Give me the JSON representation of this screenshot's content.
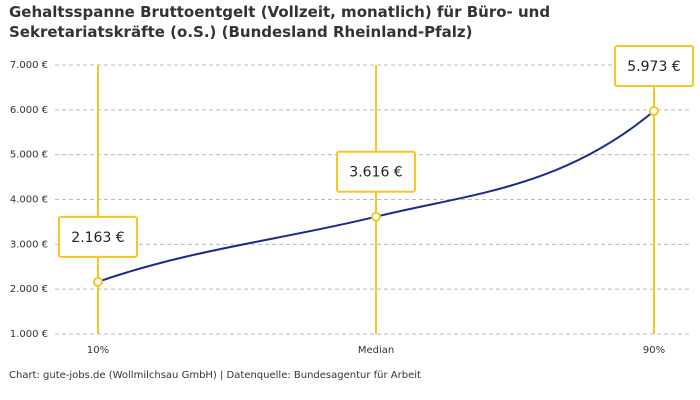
{
  "chart_data": {
    "type": "line",
    "title": "Gehaltsspanne Bruttoentgelt (Vollzeit, monatlich) für Büro- und Sekretariatskräfte (o.S.) (Bundesland Rheinland-Pfalz)",
    "categories": [
      "10%",
      "Median",
      "90%"
    ],
    "values": [
      2163,
      3616,
      5973
    ],
    "value_labels": [
      "2.163 €",
      "3.616 €",
      "5.973 €"
    ],
    "color": "#1b2b8c",
    "marker_color": "#f6c623",
    "ylim": [
      1000,
      7000
    ],
    "yticks": [
      {
        "value": 1000,
        "label": "1.000 €"
      },
      {
        "value": 2000,
        "label": "2.000 €"
      },
      {
        "value": 3000,
        "label": "3.000 €"
      },
      {
        "value": 4000,
        "label": "4.000 €"
      },
      {
        "value": 5000,
        "label": "5.000 €"
      },
      {
        "value": 6000,
        "label": "6.000 €"
      },
      {
        "value": 7000,
        "label": "7.000 €"
      }
    ],
    "grid": true,
    "source": "Chart: gute-jobs.de (Wollmilchsau GmbH) | Datenquelle: Bundesagentur für Arbeit"
  }
}
